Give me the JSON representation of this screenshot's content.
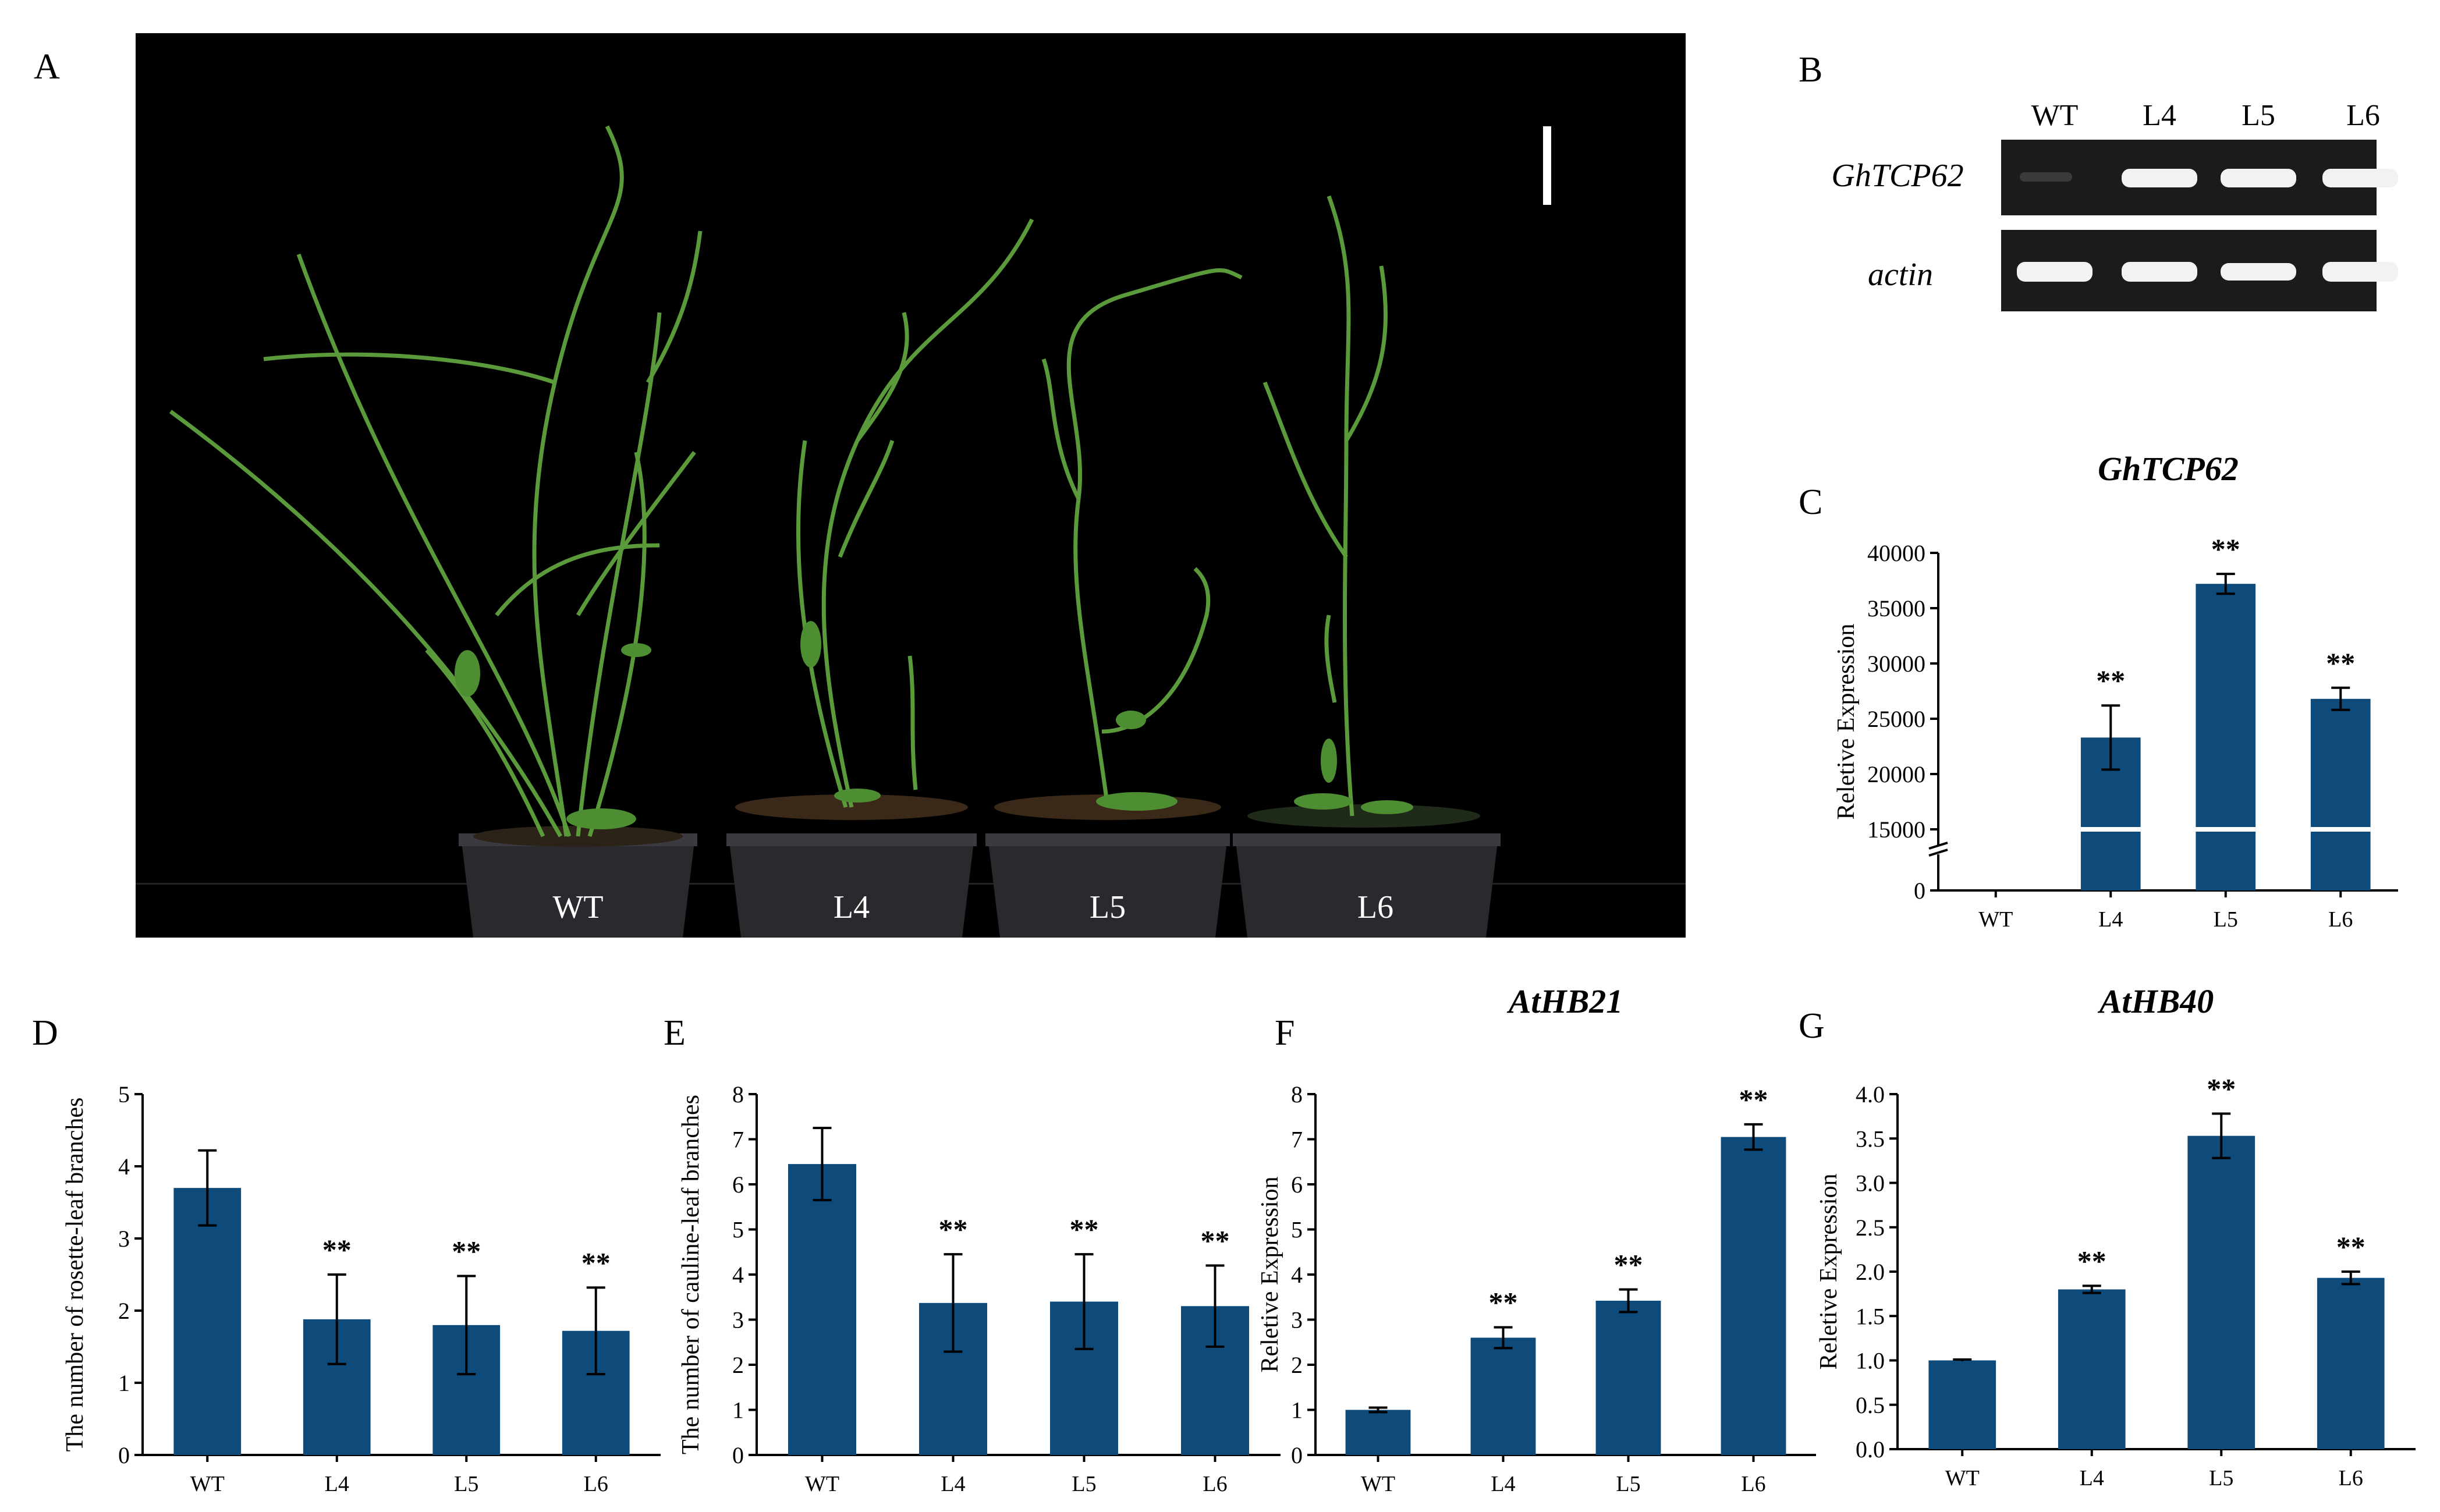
{
  "panels": {
    "A": "A",
    "B": "B",
    "C": "C",
    "D": "D",
    "E": "E",
    "F": "F",
    "G": "G"
  },
  "photo": {
    "pot_labels": [
      "WT",
      "L4",
      "L5",
      "L6"
    ],
    "plant_color": "#5a9a3a",
    "background": "#000000"
  },
  "gel": {
    "lane_labels": [
      "WT",
      "L4",
      "L5",
      "L6"
    ],
    "row_labels": [
      "GhTCP62",
      "actin"
    ]
  },
  "colors": {
    "bar": "#0e4a7a",
    "axis": "#000000"
  },
  "chart_data": [
    {
      "id": "C",
      "type": "bar",
      "title": "GhTCP62",
      "xlabel": "",
      "ylabel": "Reletive Expression",
      "categories": [
        "WT",
        "L4",
        "L5",
        "L6"
      ],
      "values": [
        1,
        23300,
        37200,
        26800
      ],
      "errors": [
        0,
        2900,
        900,
        1000
      ],
      "significance": [
        "",
        "**",
        "**",
        "**"
      ],
      "axis_break": true,
      "ytick_labels": [
        "0",
        "15000",
        "20000",
        "25000",
        "30000",
        "35000",
        "40000"
      ],
      "ylim": [
        15000,
        40000
      ]
    },
    {
      "id": "D",
      "type": "bar",
      "title": "",
      "xlabel": "",
      "ylabel": "The number of rosette-leaf  branches",
      "categories": [
        "WT",
        "L4",
        "L5",
        "L6"
      ],
      "values": [
        3.7,
        1.88,
        1.8,
        1.72
      ],
      "errors": [
        0.52,
        0.62,
        0.68,
        0.6
      ],
      "significance": [
        "",
        "**",
        "**",
        "**"
      ],
      "ytick_labels": [
        "0",
        "1",
        "2",
        "3",
        "4",
        "5"
      ],
      "ylim": [
        0,
        5
      ]
    },
    {
      "id": "E",
      "type": "bar",
      "title": "",
      "xlabel": "",
      "ylabel": "The number of cauline-leaf  branches",
      "categories": [
        "WT",
        "L4",
        "L5",
        "L6"
      ],
      "values": [
        6.45,
        3.37,
        3.4,
        3.3
      ],
      "errors": [
        0.8,
        1.08,
        1.05,
        0.9
      ],
      "significance": [
        "",
        "**",
        "**",
        "**"
      ],
      "ytick_labels": [
        "0",
        "1",
        "2",
        "3",
        "4",
        "5",
        "6",
        "7",
        "8"
      ],
      "ylim": [
        0,
        8
      ]
    },
    {
      "id": "F",
      "type": "bar",
      "title": "AtHB21",
      "xlabel": "",
      "ylabel": "Reletive Expression",
      "categories": [
        "WT",
        "L4",
        "L5",
        "L6"
      ],
      "values": [
        1.0,
        2.6,
        3.42,
        7.05
      ],
      "errors": [
        0.05,
        0.23,
        0.25,
        0.28
      ],
      "significance": [
        "",
        "**",
        "**",
        "**"
      ],
      "ytick_labels": [
        "0",
        "1",
        "2",
        "3",
        "4",
        "5",
        "6",
        "7",
        "8"
      ],
      "ylim": [
        0,
        8
      ]
    },
    {
      "id": "G",
      "type": "bar",
      "title": "AtHB40",
      "xlabel": "",
      "ylabel": "Reletive Expression",
      "categories": [
        "WT",
        "L4",
        "L5",
        "L6"
      ],
      "values": [
        1.0,
        1.8,
        3.53,
        1.93
      ],
      "errors": [
        0.01,
        0.04,
        0.25,
        0.07
      ],
      "significance": [
        "",
        "**",
        "**",
        "**"
      ],
      "ytick_labels": [
        "0.0",
        "0.5",
        "1.0",
        "1.5",
        "2.0",
        "2.5",
        "3.0",
        "3.5",
        "4.0"
      ],
      "ylim": [
        0,
        4
      ]
    }
  ]
}
